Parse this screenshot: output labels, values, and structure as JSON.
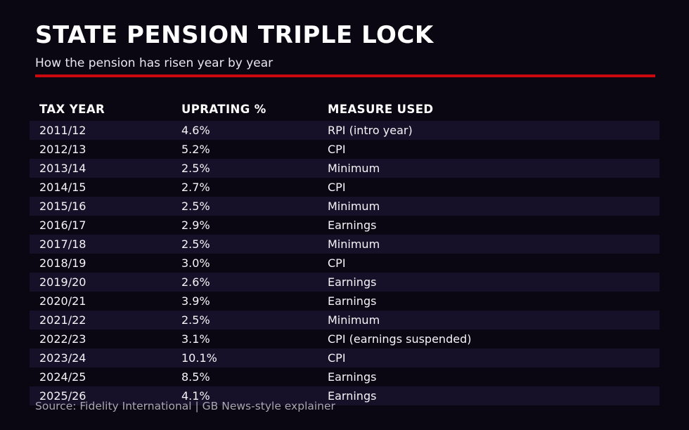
{
  "chart_data": {
    "type": "table",
    "title": "STATE PENSION TRIPLE LOCK",
    "subtitle": "How the pension has risen year by year",
    "source": "Source: Fidelity International | GB News-style explainer",
    "columns": [
      "TAX YEAR",
      "UPRATING %",
      "MEASURE USED"
    ],
    "rows": [
      {
        "tax_year": "2011/12",
        "uprating": "4.6%",
        "measure": "RPI (intro year)"
      },
      {
        "tax_year": "2012/13",
        "uprating": "5.2%",
        "measure": "CPI"
      },
      {
        "tax_year": "2013/14",
        "uprating": "2.5%",
        "measure": "Minimum"
      },
      {
        "tax_year": "2014/15",
        "uprating": "2.7%",
        "measure": "CPI"
      },
      {
        "tax_year": "2015/16",
        "uprating": "2.5%",
        "measure": "Minimum"
      },
      {
        "tax_year": "2016/17",
        "uprating": "2.9%",
        "measure": "Earnings"
      },
      {
        "tax_year": "2017/18",
        "uprating": "2.5%",
        "measure": "Minimum"
      },
      {
        "tax_year": "2018/19",
        "uprating": "3.0%",
        "measure": "CPI"
      },
      {
        "tax_year": "2019/20",
        "uprating": "2.6%",
        "measure": "Earnings"
      },
      {
        "tax_year": "2020/21",
        "uprating": "3.9%",
        "measure": "Earnings"
      },
      {
        "tax_year": "2021/22",
        "uprating": "2.5%",
        "measure": "Minimum"
      },
      {
        "tax_year": "2022/23",
        "uprating": "3.1%",
        "measure": "CPI (earnings suspended)"
      },
      {
        "tax_year": "2023/24",
        "uprating": "10.1%",
        "measure": "CPI"
      },
      {
        "tax_year": "2024/25",
        "uprating": "8.5%",
        "measure": "Earnings"
      },
      {
        "tax_year": "2025/26",
        "uprating": "4.1%",
        "measure": "Earnings"
      }
    ],
    "uprating_percent_values": [
      4.6,
      5.2,
      2.5,
      2.7,
      2.5,
      2.9,
      2.5,
      3.0,
      2.6,
      3.9,
      2.5,
      3.1,
      10.1,
      8.5,
      4.1
    ],
    "layout": {
      "striped_rows": "odd",
      "legend": "none",
      "grid": "off"
    }
  },
  "colors": {
    "background": "#0a0713",
    "row_stripe": "#161129",
    "accent_red": "#c9090e",
    "title_text": "#ffffff",
    "body_text": "#f5f4f7",
    "muted_text": "#a9a6b2"
  }
}
